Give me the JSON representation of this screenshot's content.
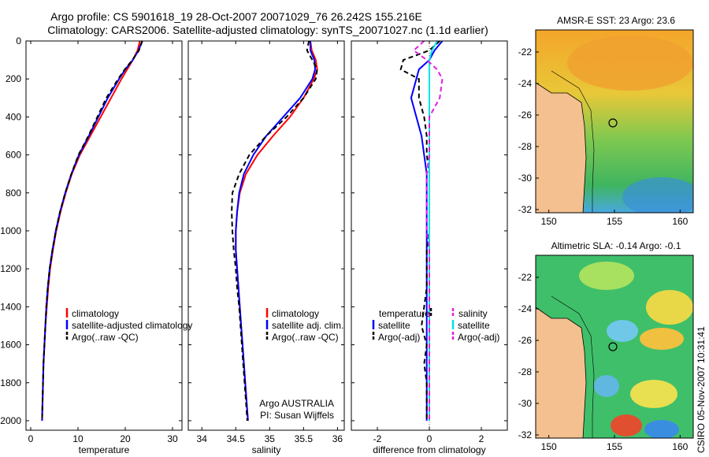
{
  "title": {
    "line1": "Argo profile: CS 5901618_19 28-Oct-2007 20071029_76 26.242S 155.216E",
    "line2": "Climatology: CARS2006. Satellite-adjusted climatology: synTS_20071027.nc (1.1d earlier)"
  },
  "colors": {
    "climatology": "#ff0000",
    "satellite": "#0000ff",
    "argo": "#000000",
    "salinity_satellite": "#00e5e5",
    "salinity_argo": "#e020e0",
    "land": "#f4c08f"
  },
  "credit": "CSIRO 05-Nov-2007 10:31:41",
  "chart_data": [
    {
      "type": "line",
      "xlabel": "temperature",
      "xlim": [
        -1,
        32
      ],
      "ylim": [
        2050,
        0
      ],
      "xticks": [
        "0",
        "10",
        "20",
        "30"
      ],
      "yticks": [
        "0",
        "200",
        "400",
        "600",
        "800",
        "1000",
        "1200",
        "1400",
        "1600",
        "1800",
        "2000"
      ],
      "depth": [
        0,
        50,
        100,
        150,
        200,
        300,
        400,
        500,
        600,
        700,
        800,
        900,
        1000,
        1100,
        1200,
        1300,
        1400,
        1500,
        1600,
        1700,
        1800,
        1900,
        2000
      ],
      "series": [
        {
          "name": "climatology",
          "values": [
            23.1,
            22.6,
            21.6,
            20.4,
            19.2,
            17.0,
            14.8,
            12.6,
            10.4,
            8.7,
            7.4,
            6.3,
            5.4,
            4.7,
            4.1,
            3.7,
            3.4,
            3.1,
            2.9,
            2.7,
            2.6,
            2.5,
            2.4
          ]
        },
        {
          "name": "satellite-adjusted climatology",
          "values": [
            23.6,
            22.8,
            21.6,
            20.0,
            18.7,
            16.3,
            14.3,
            12.3,
            10.2,
            8.6,
            7.3,
            6.2,
            5.3,
            4.6,
            4.0,
            3.6,
            3.3,
            3.1,
            2.9,
            2.7,
            2.6,
            2.5,
            2.4
          ]
        },
        {
          "name": "Argo(..raw -QC)",
          "values": [
            23.6,
            22.9,
            21.5,
            19.9,
            18.5,
            16.0,
            14.1,
            12.2,
            10.1,
            8.6,
            7.3,
            6.2,
            5.3,
            4.6,
            4.0,
            3.6,
            3.3,
            3.1,
            2.9,
            2.7,
            2.6,
            2.5,
            2.4
          ]
        }
      ],
      "legend": [
        "climatology",
        "satellite-adjusted climatology",
        "Argo(..raw -QC)"
      ]
    },
    {
      "type": "line",
      "xlabel": "salinity",
      "xlim": [
        33.8,
        36.1
      ],
      "ylim": [
        2050,
        0
      ],
      "xticks": [
        "34",
        "34.5",
        "35",
        "35.5",
        "36"
      ],
      "depth": [
        0,
        50,
        100,
        150,
        200,
        300,
        400,
        500,
        600,
        700,
        800,
        900,
        1000,
        1100,
        1200,
        1300,
        1400,
        1500,
        1600,
        1700,
        1800,
        1900,
        2000
      ],
      "series": [
        {
          "name": "climatology",
          "values": [
            35.6,
            35.62,
            35.68,
            35.7,
            35.65,
            35.5,
            35.3,
            35.05,
            34.82,
            34.65,
            34.56,
            34.52,
            34.5,
            34.5,
            34.52,
            34.54,
            34.56,
            34.58,
            34.6,
            34.62,
            34.64,
            34.66,
            34.68
          ]
        },
        {
          "name": "satellite adj. clim.",
          "values": [
            35.6,
            35.6,
            35.66,
            35.67,
            35.63,
            35.45,
            35.2,
            34.95,
            34.76,
            34.62,
            34.55,
            34.52,
            34.5,
            34.5,
            34.52,
            34.54,
            34.56,
            34.58,
            34.6,
            34.62,
            34.64,
            34.66,
            34.68
          ]
        },
        {
          "name": "Argo(..raw -QC)",
          "values": [
            35.58,
            35.55,
            35.63,
            35.7,
            35.68,
            35.5,
            35.25,
            34.95,
            34.7,
            34.55,
            34.45,
            34.44,
            34.45,
            34.47,
            34.5,
            34.52,
            34.55,
            34.57,
            34.59,
            34.61,
            34.63,
            34.65,
            34.67
          ]
        }
      ],
      "legend": [
        "climatology",
        "satellite adj. clim.",
        "Argo(..raw -QC)"
      ],
      "annotation": [
        "Argo AUSTRALIA",
        "PI: Susan Wijffels"
      ]
    },
    {
      "type": "line",
      "xlabel": "difference from climatology",
      "xlim": [
        -3,
        3
      ],
      "ylim": [
        2050,
        0
      ],
      "xticks": [
        "-2",
        "0",
        "2"
      ],
      "depth": [
        0,
        50,
        100,
        150,
        200,
        300,
        400,
        500,
        600,
        700,
        800,
        900,
        1000,
        1100,
        1200,
        1300,
        1400,
        1500,
        1600,
        1700,
        1800,
        1900,
        2000
      ],
      "series": [
        {
          "name": "temperature satellite",
          "values": [
            0.5,
            0.2,
            0.0,
            -0.4,
            -0.5,
            -0.7,
            -0.5,
            -0.3,
            -0.2,
            -0.1,
            -0.1,
            -0.1,
            -0.1,
            -0.1,
            -0.1,
            -0.1,
            -0.1,
            -0.1,
            -0.1,
            -0.1,
            -0.1,
            -0.1,
            -0.1
          ]
        },
        {
          "name": "temperature Argo(-adj)",
          "values": [
            0.4,
            0.0,
            -1.0,
            -1.1,
            -0.4,
            -0.4,
            -0.2,
            -0.1,
            -0.1,
            0.0,
            0.0,
            0.0,
            0.0,
            -0.1,
            -0.1,
            -0.1,
            -0.2,
            -0.3,
            -0.1,
            -0.2,
            -0.1,
            -0.1,
            -0.1
          ]
        },
        {
          "name": "salinity satellite",
          "values": [
            0.3,
            0.1,
            0.0,
            0.0,
            0.0,
            0.0,
            0.0,
            0.0,
            0.0,
            0.0,
            0.0,
            0.0,
            0.0,
            0.0,
            0.0,
            0.0,
            0.0,
            0.0,
            0.0,
            0.0,
            0.0,
            0.0,
            0.0
          ]
        },
        {
          "name": "salinity Argo(-adj)",
          "values": [
            -0.2,
            -0.6,
            -0.1,
            0.3,
            0.5,
            0.4,
            0.0,
            0.0,
            0.0,
            -0.1,
            -0.1,
            -0.1,
            -0.1,
            0.0,
            0.0,
            0.0,
            0.0,
            0.0,
            0.0,
            0.0,
            0.0,
            0.0,
            0.0
          ]
        }
      ],
      "legend_titles": [
        "temperature",
        "salinity"
      ],
      "legend": [
        "satellite",
        "Argo(-adj)",
        "satellite",
        "Argo(-adj)"
      ]
    },
    {
      "type": "heatmap",
      "title": "AMSR-E SST: 23 Argo: 23.6",
      "xlim": [
        149,
        161
      ],
      "ylim": [
        -32.2,
        -20.6
      ],
      "xticks": [
        "150",
        "155",
        "160"
      ],
      "yticks": [
        "-22",
        "-24",
        "-26",
        "-28",
        "-30",
        "-32"
      ],
      "float_position": [
        155.216,
        -26.242
      ]
    },
    {
      "type": "heatmap",
      "title": "Altimetric SLA: -0.14 Argo: -0.1",
      "xlim": [
        149,
        161
      ],
      "ylim": [
        -32.2,
        -20.6
      ],
      "xticks": [
        "150",
        "155",
        "160"
      ],
      "yticks": [
        "-22",
        "-24",
        "-26",
        "-28",
        "-30",
        "-32"
      ],
      "float_position": [
        155.216,
        -26.242
      ]
    }
  ]
}
